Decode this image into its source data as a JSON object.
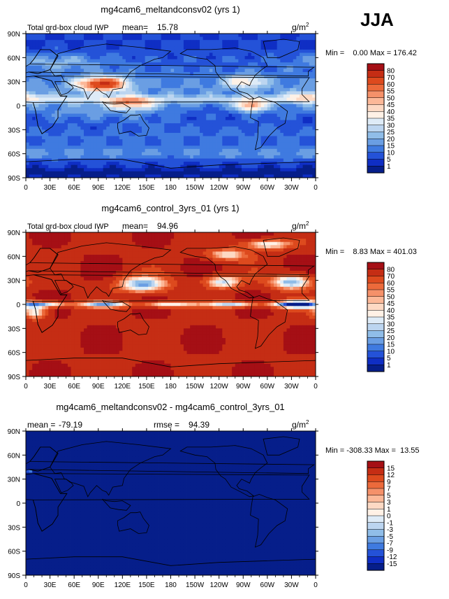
{
  "season": "JJA",
  "lon_ticks": [
    "0",
    "30E",
    "60E",
    "90E",
    "120E",
    "150E",
    "180",
    "150W",
    "120W",
    "90W",
    "60W",
    "30W",
    "0"
  ],
  "lat_ticks": [
    "90N",
    "60N",
    "30N",
    "0",
    "30S",
    "60S",
    "90S"
  ],
  "panels": [
    {
      "title": "mg4cam6_meltandconsv02 (yrs 1)",
      "left_label": "Total grd-box cloud IWP",
      "mean_label": "mean=",
      "mean_value": "15.78",
      "rmse_label": "",
      "rmse_value": "",
      "unit": "g/m",
      "unit_exp": "2",
      "min_max_text": "Min =    0.00 Max = 176.42",
      "colorbar_levels": [
        "80",
        "70",
        "60",
        "55",
        "50",
        "45",
        "40",
        "35",
        "30",
        "25",
        "20",
        "15",
        "10",
        "5",
        "1"
      ],
      "colorbar_colors": [
        "#a50f15",
        "#c52d14",
        "#dd4a1e",
        "#ec6a3b",
        "#f5916a",
        "#fcb898",
        "#fdd9c4",
        "#fff1e6",
        "#deebf7",
        "#bcd5f0",
        "#90bde8",
        "#6a9ee3",
        "#3f7ae0",
        "#2452d8",
        "#0f2ec4",
        "#061e8a"
      ],
      "field": "model"
    },
    {
      "title": "mg4cam6_control_3yrs_01 (yrs 1)",
      "left_label": "Total grd-box cloud IWP",
      "mean_label": "mean=",
      "mean_value": "94.96",
      "rmse_label": "",
      "rmse_value": "",
      "unit": "g/m",
      "unit_exp": "2",
      "min_max_text": "Min =    8.83 Max = 401.03",
      "colorbar_levels": [
        "80",
        "70",
        "60",
        "55",
        "50",
        "45",
        "40",
        "35",
        "30",
        "25",
        "20",
        "15",
        "10",
        "5",
        "1"
      ],
      "colorbar_colors": [
        "#a50f15",
        "#c52d14",
        "#dd4a1e",
        "#ec6a3b",
        "#f5916a",
        "#fcb898",
        "#fdd9c4",
        "#fff1e6",
        "#deebf7",
        "#bcd5f0",
        "#90bde8",
        "#6a9ee3",
        "#3f7ae0",
        "#2452d8",
        "#0f2ec4",
        "#061e8a"
      ],
      "field": "control"
    },
    {
      "title": "mg4cam6_meltandconsv02 - mg4cam6_control_3yrs_01",
      "left_label": "",
      "mean_label": "mean =",
      "mean_value": "-79.19",
      "rmse_label": "rmse =",
      "rmse_value": "94.39",
      "unit": "g/m",
      "unit_exp": "2",
      "min_max_text": "Min = -308.33 Max =  13.55",
      "colorbar_levels": [
        "15",
        "12",
        "9",
        "7",
        "5",
        "3",
        "1",
        "0",
        "-1",
        "-3",
        "-5",
        "-7",
        "-9",
        "-12",
        "-15"
      ],
      "colorbar_colors": [
        "#a50f15",
        "#c52d14",
        "#dd4a1e",
        "#ec6a3b",
        "#f5916a",
        "#fcb898",
        "#fdd9c4",
        "#fff1e6",
        "#deebf7",
        "#bcd5f0",
        "#90bde8",
        "#6a9ee3",
        "#3f7ae0",
        "#2452d8",
        "#0f2ec4",
        "#061e8a"
      ],
      "field": "diff"
    }
  ],
  "chart_data": [
    {
      "type": "heatmap",
      "title": "mg4cam6_meltandconsv02 (yrs 1)",
      "variable": "Total grd-box cloud IWP",
      "unit": "g/m2",
      "mean": 15.78,
      "min": 0.0,
      "max": 176.42,
      "xlim": [
        0,
        360
      ],
      "ylim": [
        -90,
        90
      ],
      "contour_levels": [
        1,
        5,
        10,
        15,
        20,
        25,
        30,
        35,
        40,
        45,
        50,
        55,
        60,
        70,
        80
      ]
    },
    {
      "type": "heatmap",
      "title": "mg4cam6_control_3yrs_01 (yrs 1)",
      "variable": "Total grd-box cloud IWP",
      "unit": "g/m2",
      "mean": 94.96,
      "min": 8.83,
      "max": 401.03,
      "xlim": [
        0,
        360
      ],
      "ylim": [
        -90,
        90
      ],
      "contour_levels": [
        1,
        5,
        10,
        15,
        20,
        25,
        30,
        35,
        40,
        45,
        50,
        55,
        60,
        70,
        80
      ]
    },
    {
      "type": "heatmap",
      "title": "mg4cam6_meltandconsv02 - mg4cam6_control_3yrs_01",
      "unit": "g/m2",
      "mean": -79.19,
      "rmse": 94.39,
      "min": -308.33,
      "max": 13.55,
      "xlim": [
        0,
        360
      ],
      "ylim": [
        -90,
        90
      ],
      "contour_levels": [
        -15,
        -12,
        -9,
        -7,
        -5,
        -3,
        -1,
        0,
        1,
        3,
        5,
        7,
        9,
        12,
        15
      ]
    }
  ]
}
